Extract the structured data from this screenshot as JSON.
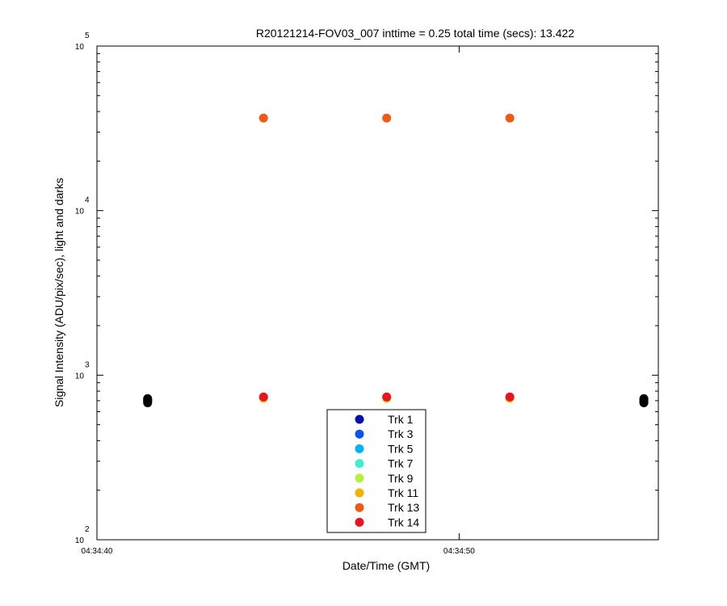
{
  "chart_data": {
    "type": "scatter",
    "title": "R20121214-FOV03_007 inttime = 0.25 total time (secs): 13.422",
    "xlabel": "Date/Time (GMT)",
    "ylabel": "Signal Intensity (ADU/pix/sec), light and darks",
    "y_scale": "log",
    "ylim": [
      100,
      100000
    ],
    "y_ticks": [
      {
        "value": 100,
        "base": "10",
        "exp": "2"
      },
      {
        "value": 1000,
        "base": "10",
        "exp": "3"
      },
      {
        "value": 10000,
        "base": "10",
        "exp": "4"
      },
      {
        "value": 100000,
        "base": "10",
        "exp": "5"
      }
    ],
    "xlim": [
      "04:34:40.0",
      "04:34:55.5"
    ],
    "x_ticks": [
      "04:34:40",
      "04:34:50"
    ],
    "grid": false,
    "legend_position": "bottom-center",
    "series": [
      {
        "name": "Trk 1",
        "color": "#0010a8"
      },
      {
        "name": "Trk 3",
        "color": "#0a55f0"
      },
      {
        "name": "Trk 5",
        "color": "#00b4f0"
      },
      {
        "name": "Trk 7",
        "color": "#3cf0c8"
      },
      {
        "name": "Trk 9",
        "color": "#b4f03c"
      },
      {
        "name": "Trk 11",
        "color": "#f0b400"
      },
      {
        "name": "Trk 13",
        "color": "#f05a14"
      },
      {
        "name": "Trk 14",
        "color": "#e8141e"
      }
    ],
    "light_points": [
      {
        "x": "04:34:44.6",
        "y": 36500,
        "color": "#f05a14"
      },
      {
        "x": "04:34:48.0",
        "y": 36500,
        "color": "#f05a14"
      },
      {
        "x": "04:34:51.4",
        "y": 36500,
        "color": "#f05a14"
      },
      {
        "x": "04:34:44.6",
        "y": 725,
        "color": "#f0b400"
      },
      {
        "x": "04:34:48.0",
        "y": 725,
        "color": "#f0b400"
      },
      {
        "x": "04:34:51.4",
        "y": 725,
        "color": "#f0b400"
      },
      {
        "x": "04:34:44.6",
        "y": 738,
        "color": "#e8141e"
      },
      {
        "x": "04:34:48.0",
        "y": 738,
        "color": "#e8141e"
      },
      {
        "x": "04:34:51.4",
        "y": 738,
        "color": "#e8141e"
      }
    ],
    "dark_points": [
      {
        "x": "04:34:41.4",
        "y": 680,
        "color": "#000000"
      },
      {
        "x": "04:34:41.4",
        "y": 690,
        "color": "#000000"
      },
      {
        "x": "04:34:41.4",
        "y": 700,
        "color": "#000000"
      },
      {
        "x": "04:34:41.4",
        "y": 710,
        "color": "#000000"
      },
      {
        "x": "04:34:41.4",
        "y": 720,
        "color": "#000000"
      },
      {
        "x": "04:34:55.1",
        "y": 680,
        "color": "#000000"
      },
      {
        "x": "04:34:55.1",
        "y": 690,
        "color": "#000000"
      },
      {
        "x": "04:34:55.1",
        "y": 700,
        "color": "#000000"
      },
      {
        "x": "04:34:55.1",
        "y": 710,
        "color": "#000000"
      },
      {
        "x": "04:34:55.1",
        "y": 720,
        "color": "#000000"
      }
    ]
  }
}
